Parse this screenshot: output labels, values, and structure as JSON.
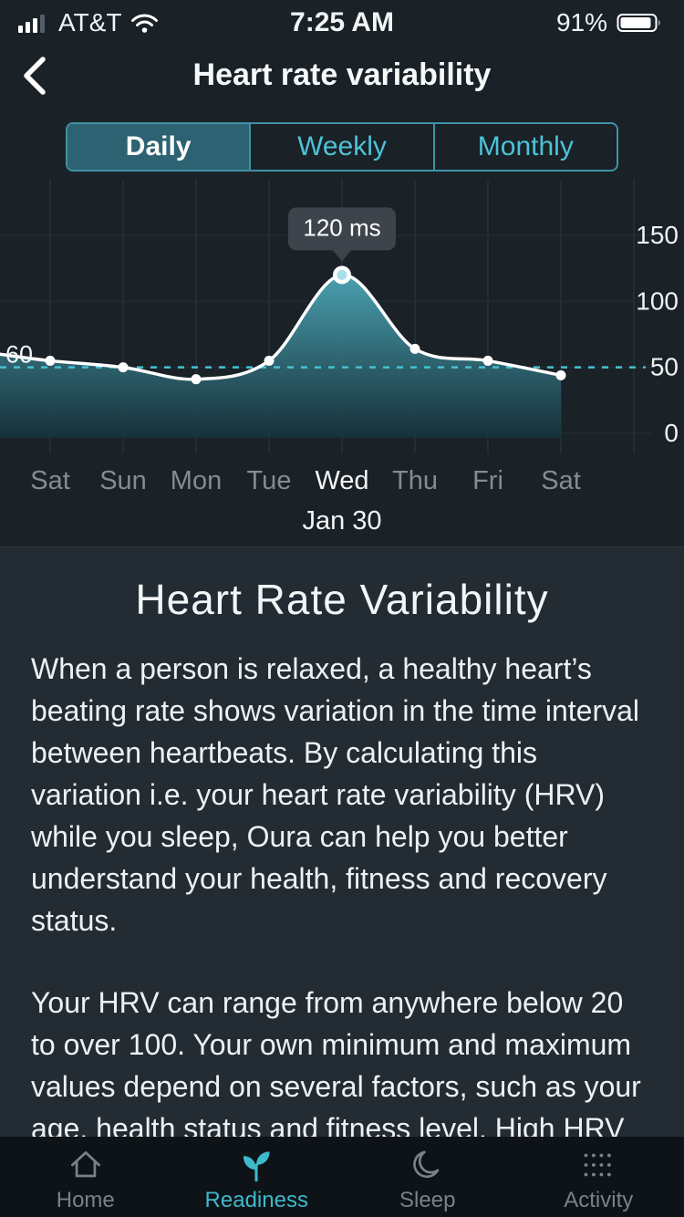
{
  "status_bar": {
    "carrier": "AT&T",
    "time": "7:25 AM",
    "battery_pct": "91%"
  },
  "header": {
    "title": "Heart rate variability"
  },
  "tabs": [
    {
      "label": "Daily",
      "selected": true
    },
    {
      "label": "Weekly",
      "selected": false
    },
    {
      "label": "Monthly",
      "selected": false
    }
  ],
  "chart_data": {
    "type": "area",
    "x": [
      "Sat",
      "Sun",
      "Mon",
      "Tue",
      "Wed",
      "Thu",
      "Fri",
      "Sat"
    ],
    "values": [
      55,
      50,
      41,
      55,
      120,
      64,
      55,
      44
    ],
    "edge_start_value": 60,
    "left_edge_label": "60",
    "selected_index": 4,
    "tooltip": "120 ms",
    "selected_date": "Jan 30",
    "baseline_value": 50,
    "y_ticks": [
      150,
      100,
      50,
      0
    ],
    "ylim": [
      0,
      155
    ],
    "grid": true,
    "legend": false,
    "line_color": "#ffffff",
    "fill_top": "#5cc6da",
    "fill_bottom": "#15313a",
    "dashed_color": "#45c2d4",
    "grid_color": "#28313a"
  },
  "description": {
    "title": "Heart Rate Variability",
    "paragraphs": [
      "When a person is relaxed, a healthy heart’s beating rate shows variation in the time interval between heartbeats. By calculating this variation i.e. your heart rate variability (HRV) while you sleep, Oura can help you better understand your health, fitness and recovery status.",
      "Your HRV can range from anywhere below 20 to over 100. Your own minimum and maximum values depend on several factors, such as your age, health status and fitness level. High HRV is typically a sign of general health and fitness."
    ]
  },
  "tab_bar": [
    {
      "label": "Home",
      "active": false
    },
    {
      "label": "Readiness",
      "active": true
    },
    {
      "label": "Sleep",
      "active": false
    },
    {
      "label": "Activity",
      "active": false
    }
  ]
}
